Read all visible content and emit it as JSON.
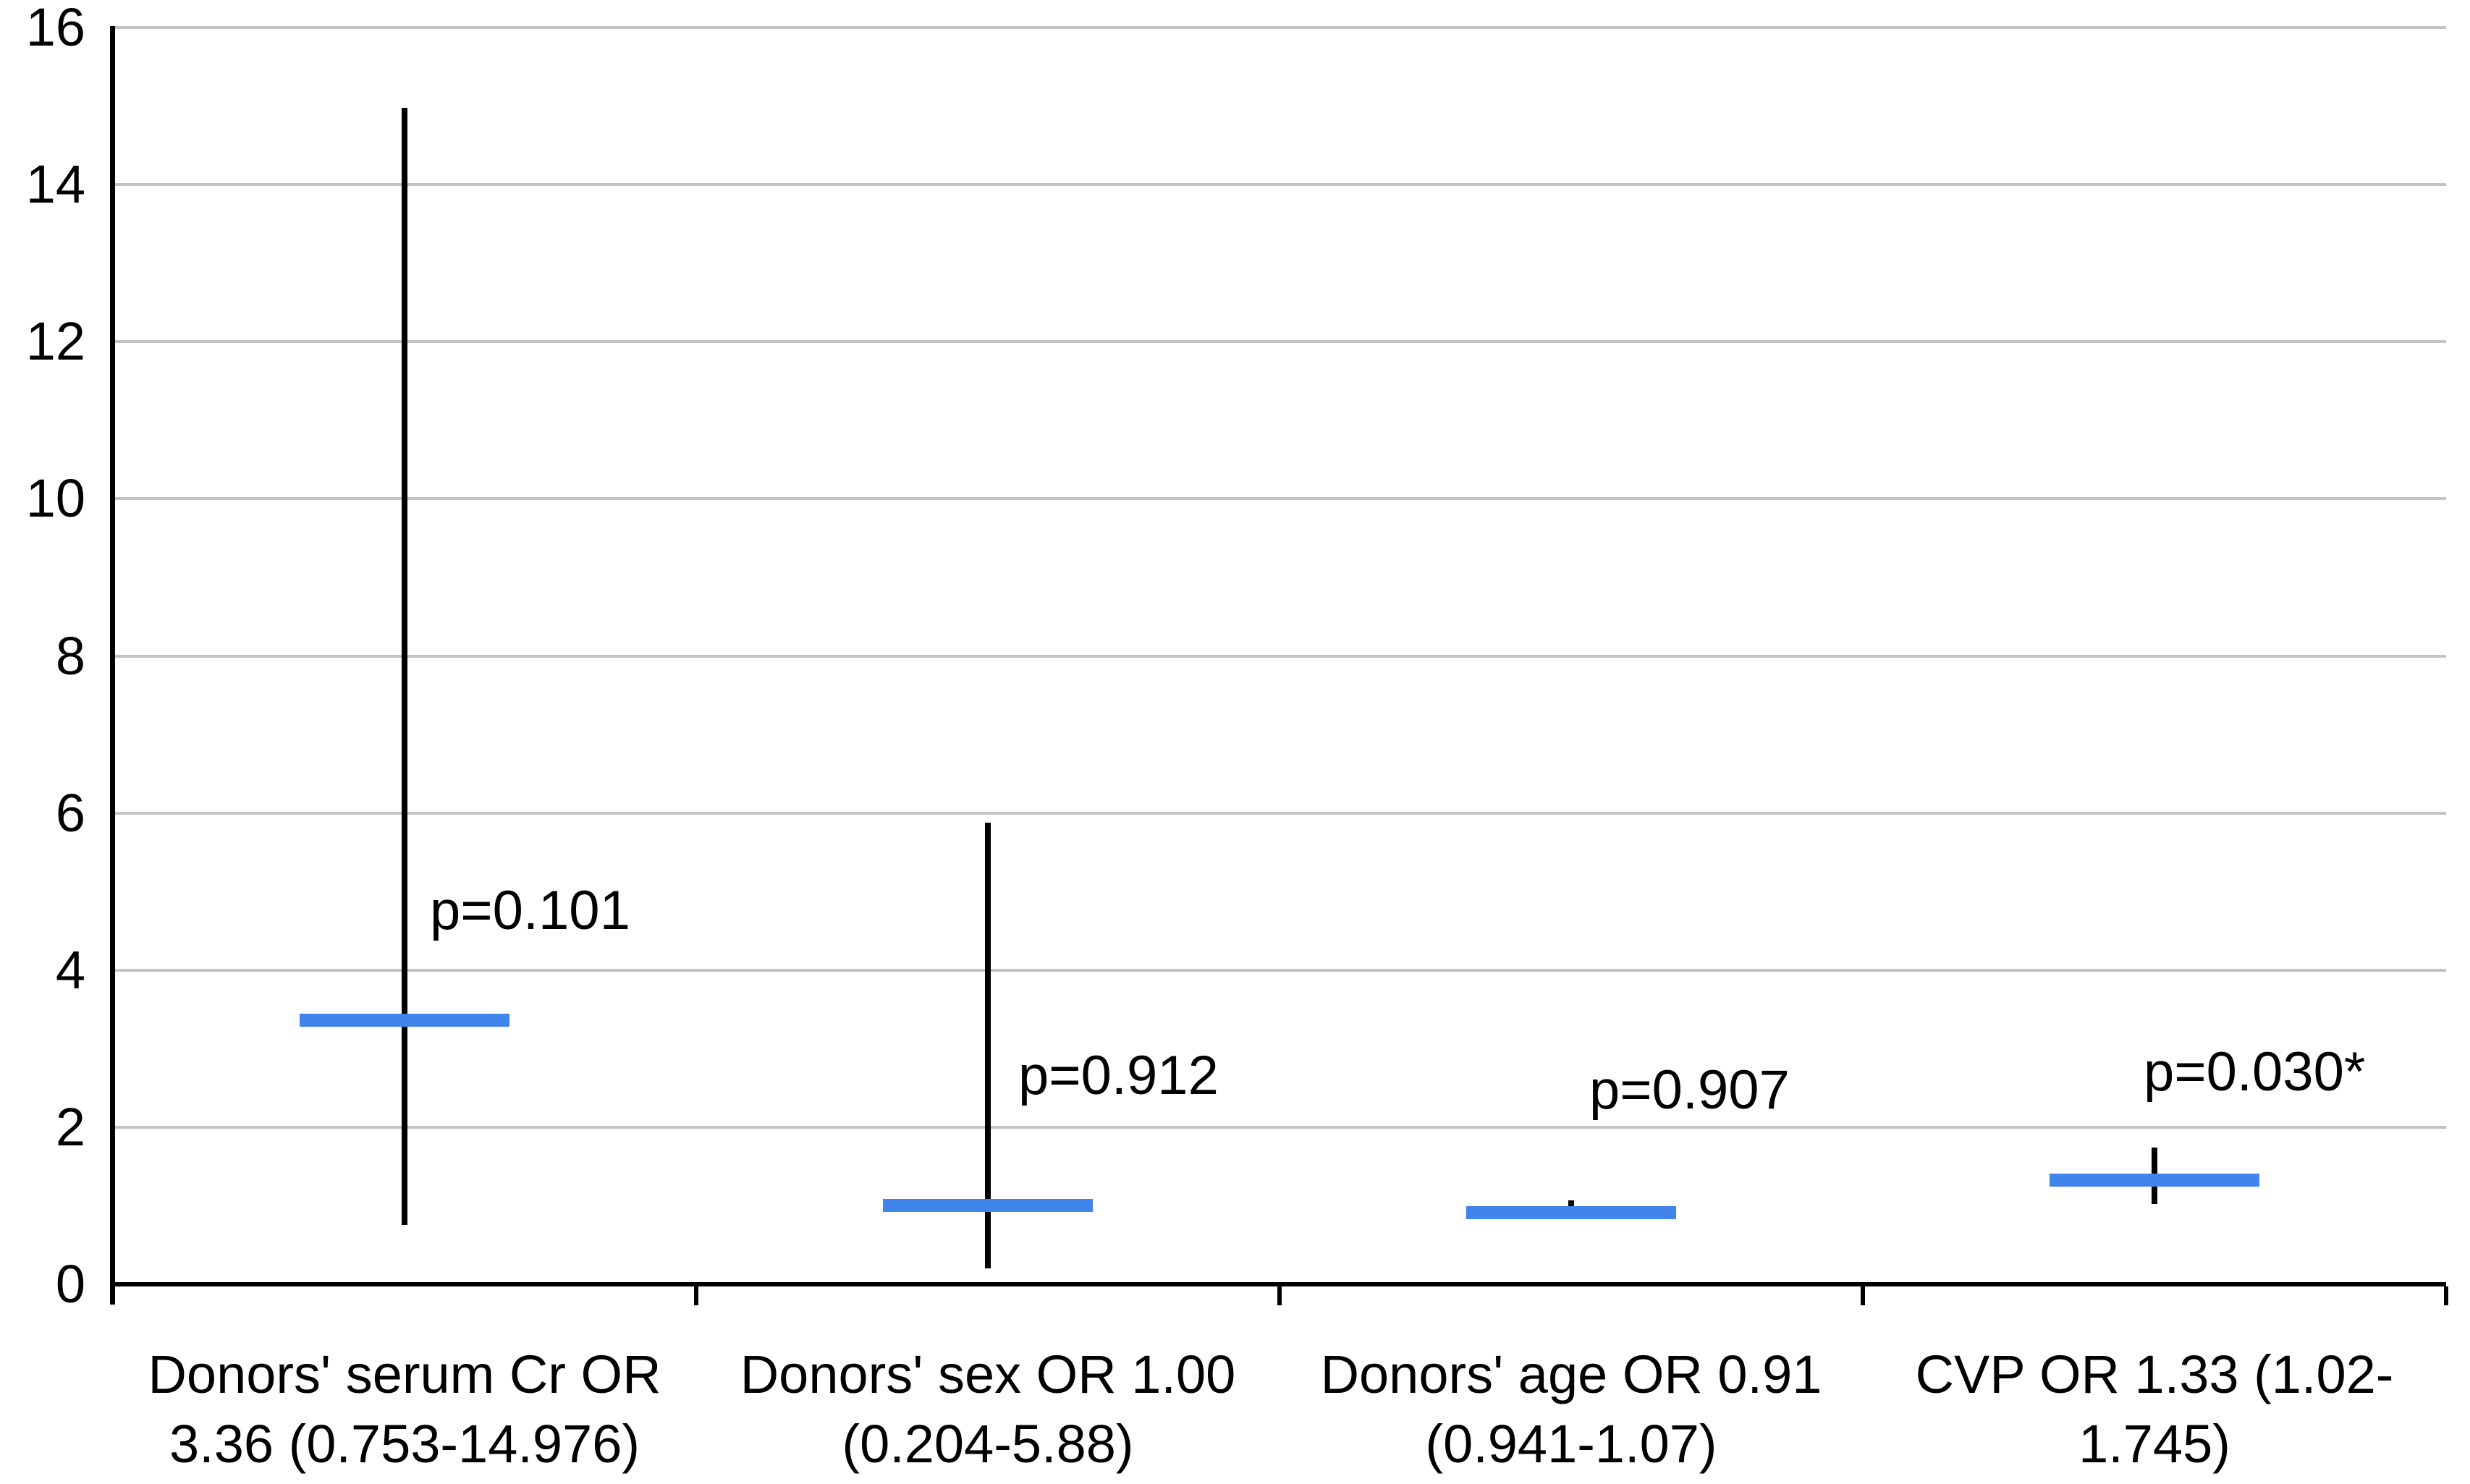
{
  "chart_data": {
    "type": "scatter",
    "subtype": "forest-plot-odds-ratios",
    "title": "",
    "xlabel": "",
    "ylabel": "",
    "ylim": [
      0,
      16
    ],
    "y_tick_step": 2,
    "y_ticks": [
      0,
      2,
      4,
      6,
      8,
      10,
      12,
      14,
      16
    ],
    "grid": "horizontal-on",
    "legend": "none",
    "marker_color": "#4184EC",
    "ci_color": "#000000",
    "gridline_color": "#C3C3C3",
    "axis_color": "#000000",
    "background_color": "#FFFFFF",
    "categories": [
      {
        "label_lines": [
          "Donors' serum Cr OR",
          "3.36 (0.753-14.976)"
        ],
        "or": 3.36,
        "ci_low": 0.753,
        "ci_high": 14.976,
        "p_label": "p=0.101",
        "p_y": 4.75,
        "p_dx": 35
      },
      {
        "label_lines": [
          "Donors' sex OR 1.00",
          "(0.204-5.88)"
        ],
        "or": 1.0,
        "ci_low": 0.204,
        "ci_high": 5.88,
        "p_label": "p=0.912",
        "p_y": 2.65,
        "p_dx": 42
      },
      {
        "label_lines": [
          "Donors' age OR 0.91",
          "(0.941-1.07)"
        ],
        "or": 0.91,
        "ci_low": 0.941,
        "ci_high": 1.07,
        "p_label": "p=0.907",
        "p_y": 2.47,
        "p_dx": 25
      },
      {
        "label_lines": [
          "CVP OR 1.33 (1.02-",
          "1.745)"
        ],
        "or": 1.33,
        "ci_low": 1.02,
        "ci_high": 1.745,
        "p_label": "p=0.030*",
        "p_y": 2.7,
        "p_dx": -15
      }
    ]
  }
}
